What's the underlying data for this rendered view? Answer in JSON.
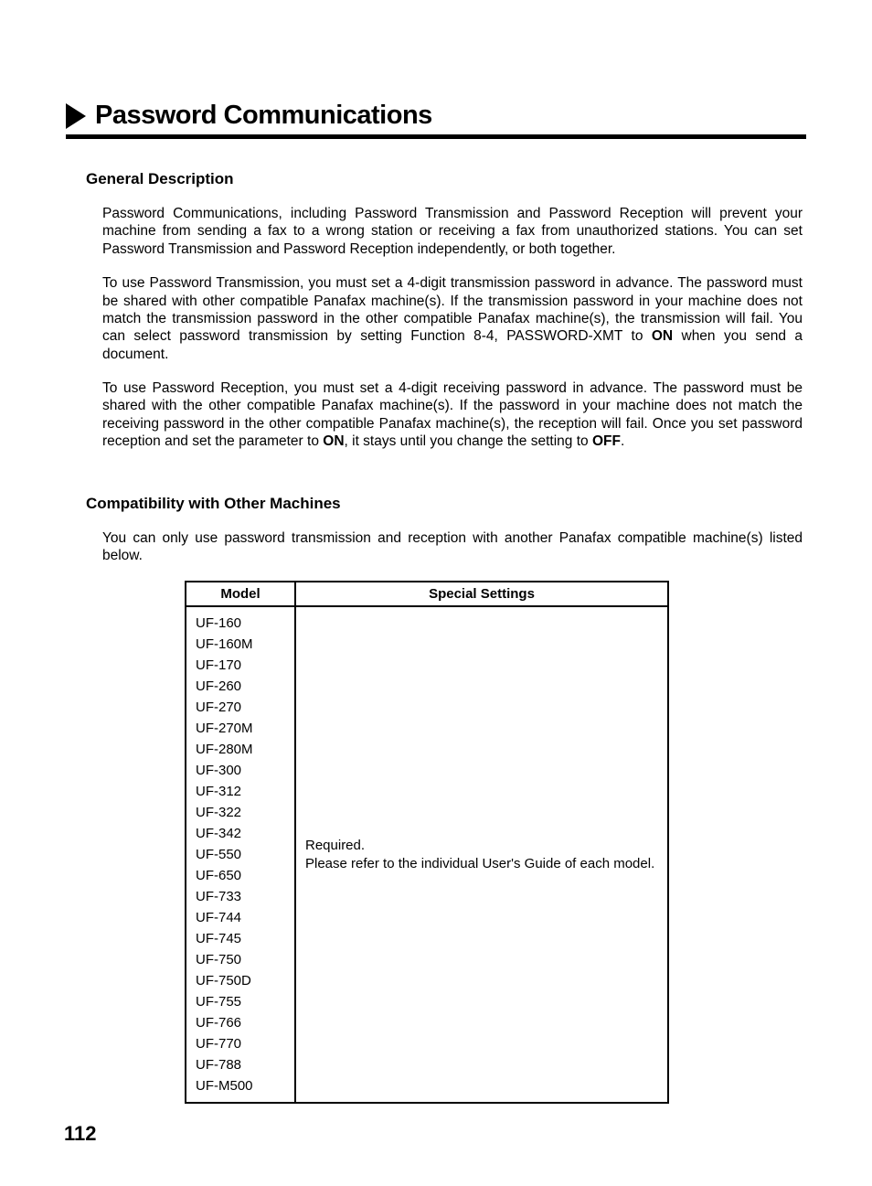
{
  "title": "Password Communications",
  "sections": {
    "general": {
      "heading": "General Description",
      "p1": "Password Communications, including Password Transmission and Password Reception will prevent your machine from sending a fax to a wrong station or receiving a fax from unauthorized stations. You can set Password Transmission and Password Reception independently, or both together.",
      "p2_a": "To use Password Transmission, you must set a 4-digit transmission password in advance. The password must be shared with other compatible Panafax machine(s). If the transmission password in your machine does not match the transmission password in the other compatible Panafax machine(s), the transmission will fail. You can select password transmission by setting Function 8-4, PASSWORD-XMT to ",
      "p2_on": "ON",
      "p2_b": " when you send a document.",
      "p3_a": "To use Password Reception, you must set a 4-digit receiving password in advance. The password must be shared with the other compatible Panafax machine(s). If the password in your machine does not match the receiving password in the other compatible Panafax machine(s), the reception will fail. Once you set password reception and set the parameter to ",
      "p3_on": "ON",
      "p3_b": ", it stays until you change the setting to ",
      "p3_off": "OFF",
      "p3_c": "."
    },
    "compat": {
      "heading": "Compatibility with Other Machines",
      "intro": "You can only use password transmission and reception with another Panafax compatible machine(s) listed below.",
      "table": {
        "headers": {
          "model": "Model",
          "settings": "Special Settings"
        },
        "models": [
          "UF-160",
          "UF-160M",
          "UF-170",
          "UF-260",
          "UF-270",
          "UF-270M",
          "UF-280M",
          "UF-300",
          "UF-312",
          "UF-322",
          "UF-342",
          "UF-550",
          "UF-650",
          "UF-733",
          "UF-744",
          "UF-745",
          "UF-750",
          "UF-750D",
          "UF-755",
          "UF-766",
          "UF-770",
          "UF-788",
          "UF-M500"
        ],
        "settings_text": "Required.\nPlease refer to the individual User's Guide of each model."
      }
    }
  },
  "page_number": "112"
}
